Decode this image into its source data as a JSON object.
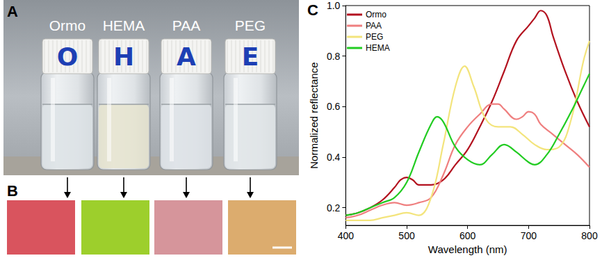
{
  "panel_labels": [
    "A",
    "B",
    "C"
  ],
  "vials": [
    {
      "label": "Ormo",
      "cap": "O"
    },
    {
      "label": "HEMA",
      "cap": "H"
    },
    {
      "label": "PAA",
      "cap": "A"
    },
    {
      "label": "PEG",
      "cap": "E"
    }
  ],
  "swatch_colors": [
    "#d9545e",
    "#9dcf2c",
    "#d6959b",
    "#dcac6e"
  ],
  "chart_data": {
    "type": "line",
    "x_label": "Wavelength (nm)",
    "y_label": "Normalized reflectance",
    "xlim": [
      400,
      800
    ],
    "xticks": [
      400,
      500,
      600,
      700,
      800
    ],
    "ylim": [
      0.13,
      1.0
    ],
    "yticks": [
      0.2,
      0.4,
      0.6,
      0.8,
      {
        "value": 1.0,
        "label": "1.0"
      }
    ],
    "grid": false,
    "legend": "upper left",
    "series": [
      {
        "name": "Ormo",
        "color": "#b3121f",
        "x": [
          400,
          420,
          440,
          460,
          480,
          490,
          500,
          510,
          520,
          540,
          560,
          580,
          600,
          620,
          640,
          660,
          680,
          700,
          710,
          720,
          730,
          740,
          760,
          780,
          800
        ],
        "values": [
          0.17,
          0.18,
          0.2,
          0.23,
          0.28,
          0.31,
          0.32,
          0.31,
          0.29,
          0.29,
          0.31,
          0.37,
          0.43,
          0.52,
          0.62,
          0.74,
          0.86,
          0.92,
          0.95,
          0.98,
          0.96,
          0.88,
          0.74,
          0.62,
          0.52
        ]
      },
      {
        "name": "PAA",
        "color": "#ef7f7f",
        "x": [
          400,
          420,
          440,
          460,
          480,
          500,
          520,
          540,
          560,
          580,
          600,
          620,
          640,
          650,
          660,
          680,
          690,
          700,
          710,
          720,
          740,
          760,
          780,
          800
        ],
        "values": [
          0.16,
          0.17,
          0.19,
          0.21,
          0.22,
          0.21,
          0.22,
          0.24,
          0.33,
          0.45,
          0.52,
          0.57,
          0.61,
          0.61,
          0.59,
          0.55,
          0.56,
          0.58,
          0.57,
          0.53,
          0.49,
          0.45,
          0.41,
          0.36
        ]
      },
      {
        "name": "PEG",
        "color": "#f3e47c",
        "x": [
          400,
          420,
          440,
          460,
          480,
          500,
          520,
          540,
          560,
          580,
          595,
          610,
          630,
          650,
          670,
          690,
          710,
          730,
          750,
          770,
          790,
          800
        ],
        "values": [
          0.15,
          0.15,
          0.15,
          0.16,
          0.17,
          0.18,
          0.17,
          0.24,
          0.45,
          0.68,
          0.76,
          0.68,
          0.55,
          0.52,
          0.52,
          0.49,
          0.45,
          0.43,
          0.44,
          0.55,
          0.78,
          0.86
        ]
      },
      {
        "name": "HEMA",
        "color": "#22cc22",
        "x": [
          400,
          420,
          440,
          460,
          480,
          500,
          520,
          540,
          550,
          560,
          580,
          600,
          620,
          640,
          660,
          680,
          700,
          710,
          730,
          750,
          770,
          790,
          800
        ],
        "values": [
          0.17,
          0.18,
          0.2,
          0.22,
          0.24,
          0.3,
          0.42,
          0.53,
          0.56,
          0.54,
          0.44,
          0.39,
          0.37,
          0.41,
          0.45,
          0.42,
          0.38,
          0.37,
          0.41,
          0.49,
          0.58,
          0.68,
          0.73
        ]
      }
    ]
  }
}
